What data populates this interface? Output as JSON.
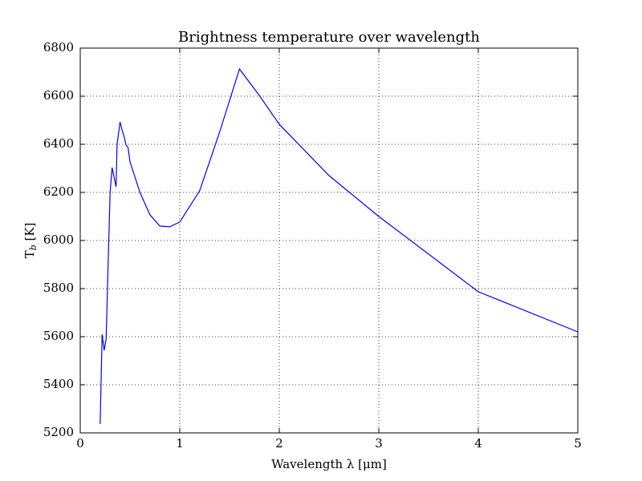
{
  "chart_data": {
    "type": "line",
    "title": "Brightness temperature over wavelength",
    "xlabel": "Wavelength λ [μm]",
    "ylabel": [
      "T",
      "b",
      " [K]"
    ],
    "x": [
      0.2,
      0.22,
      0.24,
      0.26,
      0.28,
      0.3,
      0.32,
      0.36,
      0.37,
      0.4,
      0.42,
      0.44,
      0.46,
      0.48,
      0.5,
      0.6,
      0.7,
      0.8,
      0.9,
      1.0,
      1.2,
      1.4,
      1.6,
      1.8,
      2.0,
      2.5,
      3.0,
      4.0,
      5.0
    ],
    "series": [
      {
        "color": "#0000ff",
        "values": [
          5237,
          5610,
          5543,
          5590,
          5900,
          6200,
          6303,
          6223,
          6400,
          6493,
          6460,
          6433,
          6397,
          6387,
          6327,
          6200,
          6107,
          6060,
          6057,
          6077,
          6207,
          6450,
          6713,
          6603,
          6483,
          6270,
          6100,
          5787,
          5620
        ]
      }
    ],
    "xlim": [
      0,
      5
    ],
    "xticks": [
      0,
      1,
      2,
      3,
      4,
      5
    ],
    "ylim": [
      5200,
      6800
    ],
    "yticks": [
      5200,
      5400,
      5600,
      5800,
      6000,
      6200,
      6400,
      6600,
      6800
    ],
    "grid": true
  }
}
